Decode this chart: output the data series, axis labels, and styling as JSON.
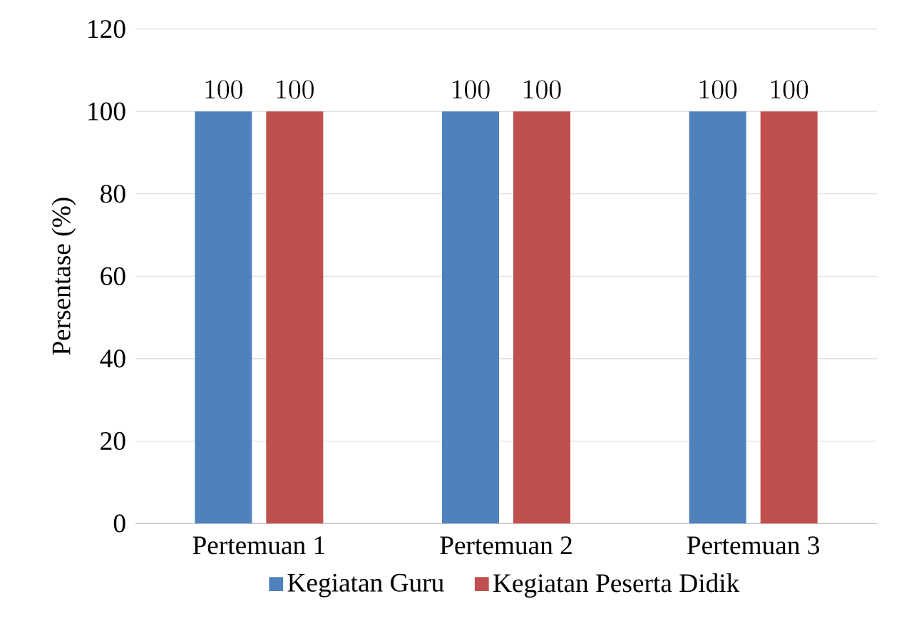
{
  "chart_data": {
    "type": "bar",
    "ylabel": "Persentase (%)",
    "categories": [
      "Pertemuan 1",
      "Pertemuan 2",
      "Pertemuan 3"
    ],
    "series": [
      {
        "name": "Kegiatan Guru",
        "color": "#4f81bd",
        "values": [
          100,
          100,
          100
        ]
      },
      {
        "name": "Kegiatan Peserta Didik",
        "color": "#c0504d",
        "values": [
          100,
          100,
          100
        ]
      }
    ],
    "ylim": [
      0,
      120
    ],
    "yticks": [
      0,
      20,
      40,
      60,
      80,
      100,
      120
    ],
    "grid": "y",
    "legend": "bottom",
    "data_labels": true
  }
}
